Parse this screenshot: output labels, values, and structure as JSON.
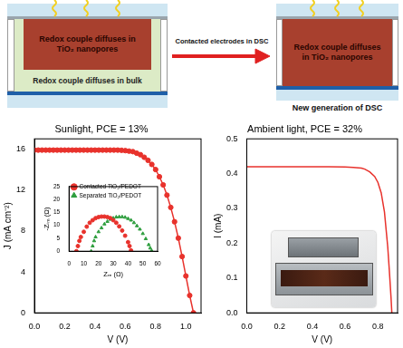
{
  "diagram": {
    "left_panel": {
      "top_label": "Redox couple diffuses in TiO₂ nanopores",
      "bottom_label": "Redox couple diffuses in bulk"
    },
    "arrow_label": "Contacted electrodes in DSC",
    "right_panel": {
      "label": "Redox couple diffuses in TiO₂ nanopores",
      "caption": "New generation of DSC"
    }
  },
  "chart_data": [
    {
      "type": "line",
      "title": "Sunlight, PCE = 13%",
      "x_label": "V (V)",
      "y_label": "J (mA cm⁻²)",
      "x": [
        0,
        0.025,
        0.05,
        0.075,
        0.1,
        0.125,
        0.15,
        0.175,
        0.2,
        0.225,
        0.25,
        0.275,
        0.3,
        0.325,
        0.35,
        0.375,
        0.4,
        0.425,
        0.45,
        0.475,
        0.5,
        0.525,
        0.55,
        0.575,
        0.6,
        0.625,
        0.65,
        0.675,
        0.7,
        0.725,
        0.75,
        0.775,
        0.8,
        0.825,
        0.85,
        0.875,
        0.9,
        0.925,
        0.95,
        0.975,
        1.0,
        1.025,
        1.05
      ],
      "values": [
        15.9,
        15.9,
        15.9,
        15.9,
        15.9,
        15.9,
        15.9,
        15.9,
        15.9,
        15.9,
        15.9,
        15.9,
        15.9,
        15.9,
        15.9,
        15.9,
        15.9,
        15.9,
        15.9,
        15.9,
        15.9,
        15.9,
        15.9,
        15.88,
        15.85,
        15.8,
        15.75,
        15.6,
        15.45,
        15.2,
        14.9,
        14.5,
        14.0,
        13.3,
        12.5,
        11.5,
        10.3,
        8.9,
        7.3,
        5.5,
        3.6,
        1.7,
        0
      ],
      "color": "#e8322c",
      "marker": "circle",
      "line_style": "solid",
      "grid": false,
      "xlim": [
        0,
        1.1
      ],
      "xticks": [
        {
          "value": 0,
          "label": "0.0"
        },
        0.2,
        0.4,
        0.6,
        0.8,
        {
          "value": 1,
          "label": "1.0"
        }
      ],
      "ylim": [
        0,
        17
      ],
      "yticks": [
        0,
        4,
        8,
        12,
        16
      ]
    },
    {
      "type": "scatter",
      "x_label": "Zᵣₑ (Ω)",
      "y_label": "-Zᵢₘ (Ω)",
      "legend": "upper left",
      "grid": false,
      "series": [
        {
          "name": "Contacted TiO₂/PEDOT",
          "color": "#e8322c",
          "marker": "circle",
          "x": [
            5,
            6,
            7,
            8,
            10,
            12,
            14,
            16,
            18,
            20,
            22,
            24,
            26,
            28,
            30,
            32,
            34,
            36,
            38,
            40,
            41,
            42
          ],
          "values": [
            0,
            2,
            4,
            5.5,
            7.5,
            9.5,
            11,
            12,
            12.8,
            13.2,
            13.4,
            13.4,
            13.2,
            12.8,
            12,
            11,
            9.6,
            8,
            6,
            3.5,
            2,
            0.3
          ]
        },
        {
          "name": "Separated TiO₂/PEDOT",
          "color": "#2e9e3e",
          "marker": "triangle",
          "x": [
            15,
            16,
            17,
            18,
            20,
            22,
            24,
            26,
            28,
            30,
            32,
            34,
            36,
            38,
            40,
            42,
            44,
            46,
            48,
            50,
            52,
            54,
            55,
            56
          ],
          "values": [
            0,
            2,
            4,
            5.5,
            7.5,
            9,
            10.5,
            11.5,
            12.3,
            12.8,
            13.2,
            13.3,
            13.3,
            13.1,
            12.6,
            12,
            11,
            9.8,
            8.5,
            6.8,
            4.8,
            2.5,
            1.2,
            0.2
          ]
        }
      ],
      "xlim": [
        0,
        60
      ],
      "xticks": [
        0,
        10,
        20,
        30,
        40,
        50,
        60
      ],
      "ylim": [
        0,
        25
      ],
      "yticks": [
        0,
        5,
        10,
        15,
        20,
        25
      ]
    },
    {
      "type": "line",
      "title": "Ambient light, PCE = 32%",
      "x_label": "V (V)",
      "y_label": "I (mA)",
      "x": [
        0,
        0.1,
        0.2,
        0.3,
        0.4,
        0.5,
        0.6,
        0.65,
        0.7,
        0.72,
        0.75,
        0.78,
        0.8,
        0.82,
        0.84,
        0.86,
        0.87,
        0.88,
        0.885
      ],
      "values": [
        0.42,
        0.42,
        0.42,
        0.42,
        0.42,
        0.42,
        0.419,
        0.418,
        0.416,
        0.413,
        0.405,
        0.392,
        0.375,
        0.345,
        0.29,
        0.19,
        0.12,
        0.045,
        0
      ],
      "color": "#e8322c",
      "marker": "none",
      "line_style": "solid",
      "grid": false,
      "xlim": [
        0,
        0.92
      ],
      "xticks": [
        {
          "value": 0,
          "label": "0.0"
        },
        0.2,
        0.4,
        0.6,
        0.8
      ],
      "ylim": [
        0,
        0.5
      ],
      "yticks": [
        {
          "value": 0,
          "label": "0.0"
        },
        0.1,
        0.2,
        0.3,
        0.4,
        0.5
      ]
    }
  ]
}
